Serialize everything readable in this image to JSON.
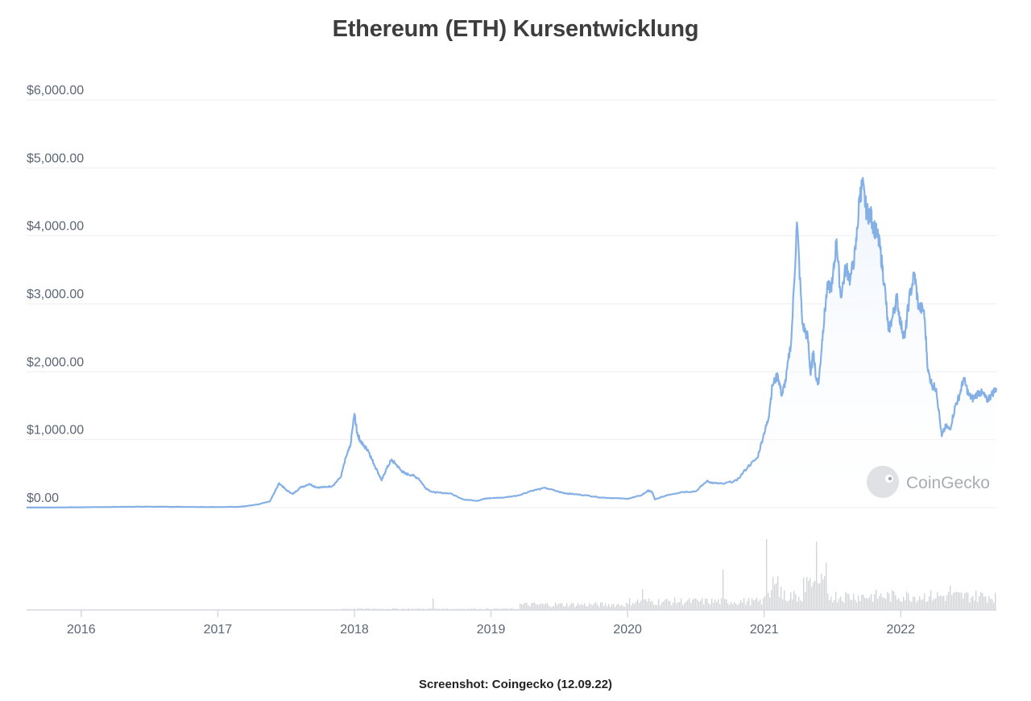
{
  "title": "Ethereum (ETH) Kursentwicklung",
  "caption": "Screenshot: Coingecko (12.09.22)",
  "watermark": "CoinGecko",
  "colors": {
    "line": "#84b0e6",
    "area": "#eef4fc",
    "volume": "#d3d4d8",
    "grid": "#eceef2",
    "axis": "#d6d9e0"
  },
  "chart_data": {
    "type": "line",
    "y_tick_labels": [
      "$0.00",
      "$1,000.00",
      "$2,000.00",
      "$3,000.00",
      "$4,000.00",
      "$5,000.00",
      "$6,000.00"
    ],
    "y_ticks": [
      0,
      1000,
      2000,
      3000,
      4000,
      5000,
      6000
    ],
    "ylim": [
      0,
      6000
    ],
    "x_tick_labels": [
      "2016",
      "2017",
      "2018",
      "2019",
      "2020",
      "2021",
      "2022"
    ],
    "x_ticks": [
      2016,
      2017,
      2018,
      2019,
      2020,
      2021,
      2022
    ],
    "xlim": [
      2015.6,
      2022.7
    ],
    "grid": true,
    "series": [
      {
        "x": [
          2015.6,
          2016.0,
          2016.3,
          2016.5,
          2016.8,
          2017.0,
          2017.15,
          2017.2,
          2017.3,
          2017.38,
          2017.45,
          2017.5,
          2017.55,
          2017.6,
          2017.67,
          2017.72,
          2017.78,
          2017.84,
          2017.9,
          2017.94,
          2017.97,
          2018.0,
          2018.02,
          2018.04,
          2018.07,
          2018.1,
          2018.13,
          2018.17,
          2018.2,
          2018.23,
          2018.27,
          2018.3,
          2018.34,
          2018.37,
          2018.42,
          2018.47,
          2018.52,
          2018.57,
          2018.62,
          2018.7,
          2018.8,
          2018.9,
          2018.95,
          2019.0,
          2019.1,
          2019.2,
          2019.3,
          2019.4,
          2019.5,
          2019.55,
          2019.6,
          2019.7,
          2019.8,
          2019.9,
          2020.0,
          2020.1,
          2020.15,
          2020.18,
          2020.2,
          2020.3,
          2020.4,
          2020.5,
          2020.58,
          2020.63,
          2020.7,
          2020.8,
          2020.88,
          2020.95,
          2021.0,
          2021.03,
          2021.06,
          2021.1,
          2021.13,
          2021.16,
          2021.2,
          2021.24,
          2021.28,
          2021.32,
          2021.34,
          2021.36,
          2021.38,
          2021.4,
          2021.43,
          2021.46,
          2021.5,
          2021.53,
          2021.56,
          2021.6,
          2021.63,
          2021.67,
          2021.7,
          2021.72,
          2021.75,
          2021.78,
          2021.8,
          2021.83,
          2021.85,
          2021.88,
          2021.91,
          2021.94,
          2021.97,
          2022.0,
          2022.03,
          2022.06,
          2022.1,
          2022.13,
          2022.17,
          2022.2,
          2022.23,
          2022.26,
          2022.3,
          2022.33,
          2022.36,
          2022.4,
          2022.43,
          2022.46,
          2022.5,
          2022.53,
          2022.57,
          2022.6,
          2022.63,
          2022.66,
          2022.7
        ],
        "values": [
          1,
          5,
          12,
          14,
          10,
          8,
          12,
          20,
          50,
          90,
          360,
          260,
          200,
          290,
          350,
          300,
          300,
          320,
          450,
          750,
          900,
          1380,
          1100,
          1000,
          900,
          850,
          700,
          530,
          400,
          550,
          700,
          650,
          550,
          500,
          480,
          430,
          290,
          230,
          220,
          210,
          120,
          100,
          130,
          140,
          150,
          180,
          250,
          290,
          230,
          210,
          200,
          180,
          150,
          140,
          130,
          180,
          250,
          230,
          120,
          190,
          230,
          240,
          390,
          360,
          350,
          400,
          600,
          730,
          1100,
          1300,
          1800,
          1950,
          1650,
          1900,
          2500,
          4200,
          2700,
          2500,
          1950,
          2300,
          1900,
          1850,
          2600,
          3200,
          3300,
          3950,
          3100,
          3550,
          3350,
          3800,
          4600,
          4750,
          4350,
          4300,
          4150,
          4000,
          3800,
          3300,
          2600,
          2800,
          3100,
          2700,
          2500,
          3050,
          3450,
          2950,
          2900,
          2000,
          1800,
          1750,
          1050,
          1200,
          1150,
          1500,
          1650,
          1900,
          1650,
          1600,
          1700,
          1680,
          1580,
          1650,
          1760
        ]
      }
    ]
  }
}
